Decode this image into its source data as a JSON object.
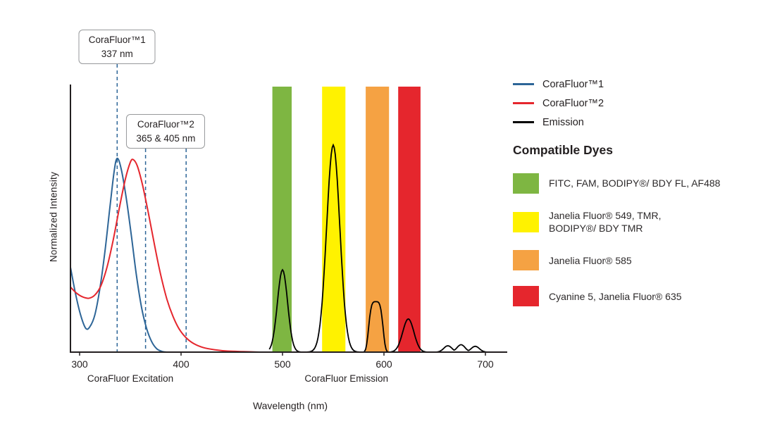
{
  "colors": {
    "accent_blue": "#2d6597",
    "accent_red": "#e5262d",
    "axis": "#231f20",
    "green_band": "#7eb642",
    "yellow_band": "#fff200",
    "orange_band": "#f5a243",
    "red_band": "#e5262d"
  },
  "callouts": [
    {
      "line1": "CoraFluor™1",
      "line2": "337 nm",
      "center_nm": 337
    },
    {
      "line1": "CoraFluor™2",
      "line2": "365 & 405 nm",
      "center_nm": 385
    }
  ],
  "legend": {
    "series": [
      {
        "label": "CoraFluor™1",
        "color": "#2d6597"
      },
      {
        "label": "CoraFluor™2",
        "color": "#e5262d"
      },
      {
        "label": "Emission",
        "color": "#000000"
      }
    ],
    "dyes_heading": "Compatible Dyes",
    "dyes": [
      {
        "color": "#7eb642",
        "label": "FITC, FAM, BODIPY®/ BDY FL, AF488"
      },
      {
        "color": "#fff200",
        "label": "Janelia Fluor® 549, TMR,\nBODIPY®/ BDY TMR"
      },
      {
        "color": "#f5a243",
        "label": "Janelia Fluor® 585"
      },
      {
        "color": "#e5262d",
        "label": "Cyanine 5, Janelia Fluor® 635"
      }
    ]
  },
  "chart_data": {
    "type": "line",
    "xlabel": "Wavelength (nm)",
    "ylabel": "Normalized Intensity",
    "xlim": [
      291,
      722
    ],
    "ylim": [
      0,
      1
    ],
    "x_ticks": [
      300,
      400,
      500,
      600,
      700
    ],
    "x_axis_section_labels": [
      {
        "text": "CoraFluor Excitation",
        "center_nm": 350
      },
      {
        "text": "CoraFluor Emission",
        "center_nm": 563
      }
    ],
    "dashed_markers_nm": [
      337,
      365,
      405
    ],
    "marker_color": "#2d6597",
    "series": [
      {
        "key": "corafluor1",
        "name": "CoraFluor™1",
        "color": "#2d6597",
        "points": [
          [
            291,
            0.32
          ],
          [
            296,
            0.22
          ],
          [
            301,
            0.14
          ],
          [
            306,
            0.09
          ],
          [
            310,
            0.095
          ],
          [
            315,
            0.14
          ],
          [
            320,
            0.24
          ],
          [
            325,
            0.38
          ],
          [
            330,
            0.55
          ],
          [
            334,
            0.68
          ],
          [
            337,
            0.73
          ],
          [
            341,
            0.69
          ],
          [
            346,
            0.58
          ],
          [
            351,
            0.44
          ],
          [
            356,
            0.29
          ],
          [
            361,
            0.17
          ],
          [
            366,
            0.09
          ],
          [
            371,
            0.04
          ],
          [
            376,
            0.013
          ],
          [
            381,
            0.003
          ],
          [
            386,
            0
          ]
        ]
      },
      {
        "key": "corafluor2",
        "name": "CoraFluor™2",
        "color": "#e5262d",
        "points": [
          [
            291,
            0.245
          ],
          [
            297,
            0.222
          ],
          [
            303,
            0.208
          ],
          [
            309,
            0.203
          ],
          [
            315,
            0.215
          ],
          [
            321,
            0.25
          ],
          [
            327,
            0.32
          ],
          [
            333,
            0.42
          ],
          [
            339,
            0.54
          ],
          [
            345,
            0.65
          ],
          [
            350,
            0.715
          ],
          [
            353,
            0.725
          ],
          [
            357,
            0.7
          ],
          [
            362,
            0.63
          ],
          [
            368,
            0.52
          ],
          [
            374,
            0.4
          ],
          [
            380,
            0.29
          ],
          [
            386,
            0.2
          ],
          [
            392,
            0.135
          ],
          [
            398,
            0.088
          ],
          [
            405,
            0.054
          ],
          [
            413,
            0.031
          ],
          [
            422,
            0.017
          ],
          [
            433,
            0.009
          ],
          [
            446,
            0.004
          ],
          [
            461,
            0.002
          ],
          [
            477,
            0
          ]
        ]
      },
      {
        "key": "emission",
        "name": "Emission",
        "color": "#000000",
        "range_nm": [
          487,
          718
        ],
        "peaks": [
          {
            "center": 500,
            "height": 0.31,
            "sigma": 5
          },
          {
            "center": 550,
            "height": 0.78,
            "sigma": 6.5
          },
          {
            "center": 592,
            "height": 0.19,
            "sigma": 6.5,
            "flat": true
          },
          {
            "center": 624,
            "height": 0.125,
            "sigma": 5.5
          },
          {
            "center": 663,
            "height": 0.024,
            "sigma": 4
          },
          {
            "center": 676,
            "height": 0.028,
            "sigma": 4
          },
          {
            "center": 690,
            "height": 0.022,
            "sigma": 4
          }
        ]
      }
    ],
    "emission_bands": [
      {
        "dyes": "FITC, FAM, BODIPY®/ BDY FL, AF488",
        "color": "#7eb642",
        "from_nm": 490,
        "to_nm": 509
      },
      {
        "dyes": "Janelia Fluor® 549, TMR, BODIPY®/ BDY TMR",
        "color": "#fff200",
        "from_nm": 539,
        "to_nm": 562
      },
      {
        "dyes": "Janelia Fluor® 585",
        "color": "#f5a243",
        "from_nm": 582,
        "to_nm": 605
      },
      {
        "dyes": "Cyanine 5, Janelia Fluor® 635",
        "color": "#e5262d",
        "from_nm": 614,
        "to_nm": 636
      }
    ]
  }
}
